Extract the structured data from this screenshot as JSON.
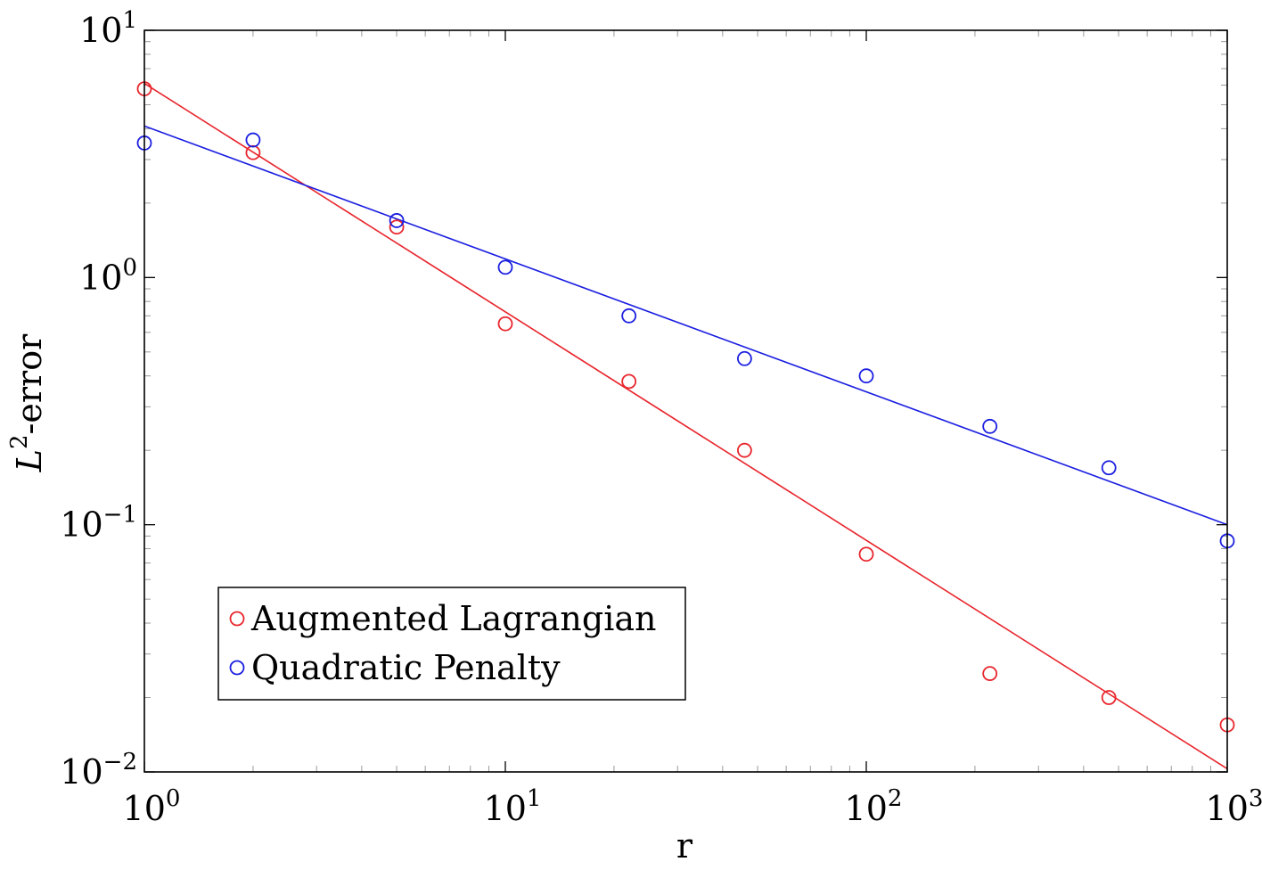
{
  "chart_data": {
    "type": "scatter",
    "xscale": "log",
    "yscale": "log",
    "xlim": [
      1,
      1000
    ],
    "ylim": [
      0.01,
      10
    ],
    "xlabel": "r",
    "ylabel": {
      "base": "L",
      "sup": "2",
      "rest": "-error"
    },
    "x_ticks": [
      {
        "value": 1,
        "base": "10",
        "exp": "0"
      },
      {
        "value": 10,
        "base": "10",
        "exp": "1"
      },
      {
        "value": 100,
        "base": "10",
        "exp": "2"
      },
      {
        "value": 1000,
        "base": "10",
        "exp": "3"
      }
    ],
    "y_ticks": [
      {
        "value": 0.01,
        "base": "10",
        "exp": "−2"
      },
      {
        "value": 0.1,
        "base": "10",
        "exp": "−1"
      },
      {
        "value": 1,
        "base": "10",
        "exp": "0"
      },
      {
        "value": 10,
        "base": "10",
        "exp": "1"
      }
    ],
    "grid": false,
    "legend_position": "bottom-left",
    "series": [
      {
        "name": "Augmented Lagrangian",
        "color": "#e8262d",
        "marker": "circle-open",
        "x": [
          1,
          2,
          5,
          10,
          22,
          46,
          100,
          220,
          470,
          1000
        ],
        "y": [
          5.8,
          3.2,
          1.6,
          0.65,
          0.38,
          0.2,
          0.076,
          0.025,
          0.02,
          0.0155
        ],
        "fit": {
          "x": [
            1,
            1000
          ],
          "y": [
            6.1,
            0.0103
          ]
        }
      },
      {
        "name": "Quadratic Penalty",
        "color": "#1b1fe0",
        "marker": "circle-open",
        "x": [
          1,
          2,
          5,
          10,
          22,
          46,
          100,
          220,
          470,
          1000
        ],
        "y": [
          3.5,
          3.6,
          1.7,
          1.1,
          0.7,
          0.47,
          0.4,
          0.25,
          0.17,
          0.086
        ],
        "fit": {
          "x": [
            1,
            1000
          ],
          "y": [
            4.1,
            0.1
          ]
        }
      }
    ]
  }
}
